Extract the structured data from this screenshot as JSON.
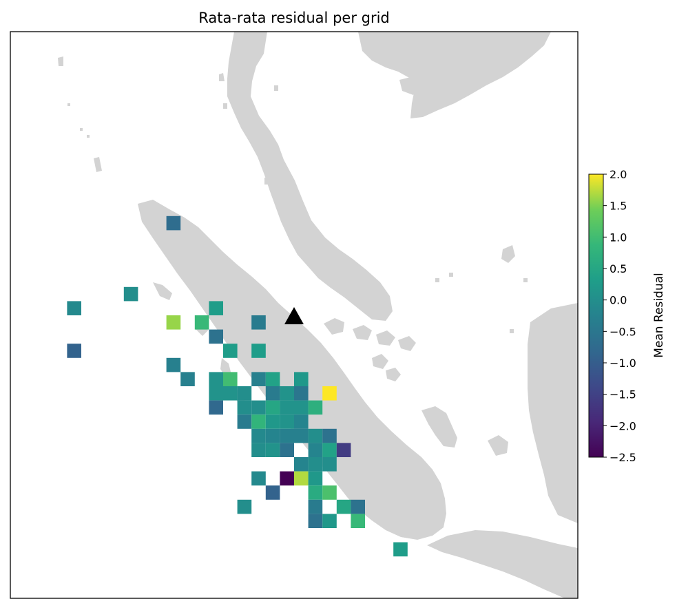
{
  "map": {
    "title": "Rata-rata residual per grid",
    "land_color": "#d3d3d3",
    "frame_color": "#000000",
    "marker": {
      "shape": "triangle",
      "color": "#000000"
    }
  },
  "colorbar": {
    "label": "Mean Residual",
    "min": -2.5,
    "max": 2.0,
    "ticks": [
      2.0,
      1.5,
      1.0,
      0.5,
      0.0,
      -0.5,
      -1.0,
      -1.5,
      -2.0,
      -2.5
    ],
    "tick_labels": [
      "2.0",
      "1.5",
      "1.0",
      "0.5",
      "0.0",
      "−0.5",
      "−1.0",
      "−1.5",
      "−2.0",
      "−2.5"
    ],
    "colormap": "viridis"
  },
  "chart_data": {
    "type": "heatmap",
    "title": "Rata-rata residual per grid",
    "colorbar_label": "Mean Residual",
    "vmin": -2.5,
    "vmax": 2.0,
    "grid_cells": [
      {
        "col": 11,
        "row": 13,
        "value": -0.7
      },
      {
        "col": 8,
        "row": 18,
        "value": 0.0
      },
      {
        "col": 4,
        "row": 19,
        "value": -0.1
      },
      {
        "col": 14,
        "row": 19,
        "value": 0.3
      },
      {
        "col": 11,
        "row": 20,
        "value": 1.6
      },
      {
        "col": 13,
        "row": 20,
        "value": 0.9
      },
      {
        "col": 17,
        "row": 20,
        "value": -0.4
      },
      {
        "col": 14,
        "row": 21,
        "value": -0.6
      },
      {
        "col": 4,
        "row": 22,
        "value": -0.9
      },
      {
        "col": 15,
        "row": 22,
        "value": 0.3
      },
      {
        "col": 17,
        "row": 22,
        "value": 0.3
      },
      {
        "col": 11,
        "row": 23,
        "value": -0.3
      },
      {
        "col": 12,
        "row": 24,
        "value": -0.3
      },
      {
        "col": 14,
        "row": 24,
        "value": 0.1
      },
      {
        "col": 15,
        "row": 24,
        "value": 1.0
      },
      {
        "col": 17,
        "row": 24,
        "value": -0.3
      },
      {
        "col": 18,
        "row": 24,
        "value": 0.4
      },
      {
        "col": 20,
        "row": 24,
        "value": 0.2
      },
      {
        "col": 14,
        "row": 25,
        "value": 0.1
      },
      {
        "col": 15,
        "row": 25,
        "value": 0.1
      },
      {
        "col": 16,
        "row": 25,
        "value": 0.0
      },
      {
        "col": 18,
        "row": 25,
        "value": -0.4
      },
      {
        "col": 19,
        "row": 25,
        "value": 0.1
      },
      {
        "col": 20,
        "row": 25,
        "value": -0.5
      },
      {
        "col": 22,
        "row": 25,
        "value": 2.0
      },
      {
        "col": 14,
        "row": 26,
        "value": -0.8
      },
      {
        "col": 16,
        "row": 26,
        "value": 0.0
      },
      {
        "col": 17,
        "row": 26,
        "value": 0.0
      },
      {
        "col": 18,
        "row": 26,
        "value": 0.5
      },
      {
        "col": 19,
        "row": 26,
        "value": 0.1
      },
      {
        "col": 20,
        "row": 26,
        "value": 0.1
      },
      {
        "col": 21,
        "row": 26,
        "value": 0.7
      },
      {
        "col": 16,
        "row": 27,
        "value": -0.4
      },
      {
        "col": 17,
        "row": 27,
        "value": 0.8
      },
      {
        "col": 18,
        "row": 27,
        "value": 0.2
      },
      {
        "col": 19,
        "row": 27,
        "value": 0.1
      },
      {
        "col": 20,
        "row": 27,
        "value": -0.2
      },
      {
        "col": 17,
        "row": 28,
        "value": -0.1
      },
      {
        "col": 18,
        "row": 28,
        "value": -0.2
      },
      {
        "col": 19,
        "row": 28,
        "value": -0.3
      },
      {
        "col": 20,
        "row": 28,
        "value": -0.3
      },
      {
        "col": 21,
        "row": 28,
        "value": 0.0
      },
      {
        "col": 22,
        "row": 28,
        "value": -0.6
      },
      {
        "col": 17,
        "row": 29,
        "value": 0.0
      },
      {
        "col": 18,
        "row": 29,
        "value": 0.1
      },
      {
        "col": 19,
        "row": 29,
        "value": -0.6
      },
      {
        "col": 21,
        "row": 29,
        "value": -0.2
      },
      {
        "col": 22,
        "row": 29,
        "value": 0.4
      },
      {
        "col": 23,
        "row": 29,
        "value": -1.6
      },
      {
        "col": 20,
        "row": 30,
        "value": -0.2
      },
      {
        "col": 21,
        "row": 30,
        "value": 0.0
      },
      {
        "col": 22,
        "row": 30,
        "value": 0.0
      },
      {
        "col": 17,
        "row": 31,
        "value": -0.1
      },
      {
        "col": 19,
        "row": 31,
        "value": -2.5
      },
      {
        "col": 20,
        "row": 31,
        "value": 1.7
      },
      {
        "col": 21,
        "row": 31,
        "value": 0.2
      },
      {
        "col": 18,
        "row": 32,
        "value": -0.9
      },
      {
        "col": 21,
        "row": 32,
        "value": 0.6
      },
      {
        "col": 22,
        "row": 32,
        "value": 1.1
      },
      {
        "col": 16,
        "row": 33,
        "value": 0.0
      },
      {
        "col": 21,
        "row": 33,
        "value": -0.4
      },
      {
        "col": 23,
        "row": 33,
        "value": 0.5
      },
      {
        "col": 24,
        "row": 33,
        "value": -0.6
      },
      {
        "col": 21,
        "row": 34,
        "value": -0.6
      },
      {
        "col": 22,
        "row": 34,
        "value": 0.2
      },
      {
        "col": 24,
        "row": 34,
        "value": 0.9
      },
      {
        "col": 27,
        "row": 36,
        "value": 0.3
      }
    ]
  }
}
